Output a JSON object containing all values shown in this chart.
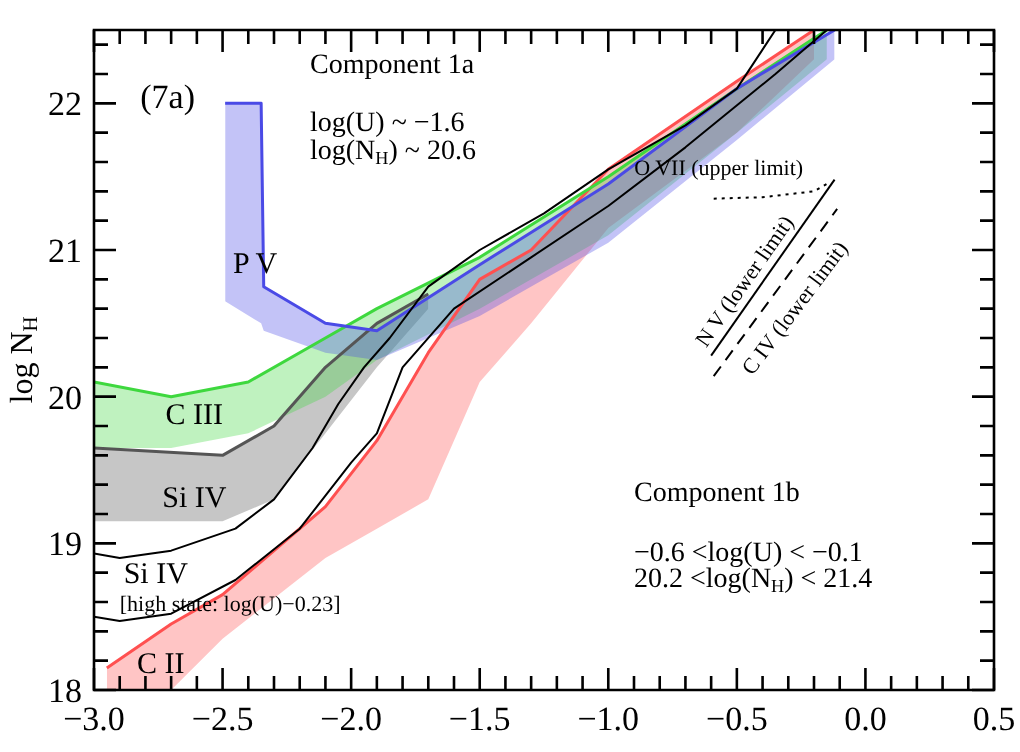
{
  "chart_data": {
    "type": "line",
    "ylabel": "log N$_{H}$",
    "xlim": [
      -3.0,
      0.5
    ],
    "ylim": [
      18,
      22.5
    ],
    "xticks": [
      {
        "value": -3,
        "label": "−3.0"
      },
      {
        "value": -2.9,
        "label": null
      },
      {
        "value": -2.8,
        "label": null
      },
      {
        "value": -2.7,
        "label": null
      },
      {
        "value": -2.6,
        "label": null
      },
      {
        "value": -2.5,
        "label": "−2.5"
      },
      {
        "value": -2.4,
        "label": null
      },
      {
        "value": -2.3,
        "label": null
      },
      {
        "value": -2.2,
        "label": null
      },
      {
        "value": -2.1,
        "label": null
      },
      {
        "value": -2,
        "label": "−2.0"
      },
      {
        "value": -1.9,
        "label": null
      },
      {
        "value": -1.8,
        "label": null
      },
      {
        "value": -1.7,
        "label": null
      },
      {
        "value": -1.6,
        "label": null
      },
      {
        "value": -1.5,
        "label": "−1.5"
      },
      {
        "value": -1.4,
        "label": null
      },
      {
        "value": -1.3,
        "label": null
      },
      {
        "value": -1.2,
        "label": null
      },
      {
        "value": -1.1,
        "label": null
      },
      {
        "value": -1,
        "label": "−1.0"
      },
      {
        "value": -0.9,
        "label": null
      },
      {
        "value": -0.8,
        "label": null
      },
      {
        "value": -0.7,
        "label": null
      },
      {
        "value": -0.6,
        "label": null
      },
      {
        "value": -0.5,
        "label": "−0.5"
      },
      {
        "value": -0.4,
        "label": null
      },
      {
        "value": -0.3,
        "label": null
      },
      {
        "value": -0.2,
        "label": null
      },
      {
        "value": -0.1,
        "label": null
      },
      {
        "value": 0,
        "label": "0.0"
      },
      {
        "value": 0.1,
        "label": null
      },
      {
        "value": 0.2,
        "label": null
      },
      {
        "value": 0.3,
        "label": null
      },
      {
        "value": 0.4,
        "label": null
      },
      {
        "value": 0.5,
        "label": "0.5"
      }
    ],
    "yticks": [
      18,
      {
        "value": 18.2,
        "label": null
      },
      {
        "value": 18.4,
        "label": null
      },
      {
        "value": 18.6,
        "label": null
      },
      {
        "value": 18.8,
        "label": null
      },
      19,
      {
        "value": 19.2,
        "label": null
      },
      {
        "value": 19.4,
        "label": null
      },
      {
        "value": 19.6,
        "label": null
      },
      {
        "value": 19.8,
        "label": null
      },
      20,
      {
        "value": 20.2,
        "label": null
      },
      {
        "value": 20.4,
        "label": null
      },
      {
        "value": 20.6,
        "label": null
      },
      {
        "value": 20.8,
        "label": null
      },
      21,
      {
        "value": 21.2,
        "label": null
      },
      {
        "value": 21.4,
        "label": null
      },
      {
        "value": 21.6,
        "label": null
      },
      {
        "value": 21.8,
        "label": null
      },
      22,
      {
        "value": 22.2,
        "label": null
      },
      {
        "value": 22.4,
        "label": null
      }
    ],
    "grid": false,
    "legend": false,
    "series": [
      {
        "name": "P V",
        "color": "#4a4ae6",
        "x": [
          -2.49,
          -2.35,
          -2.34,
          -2.1,
          -1.9,
          -1.5,
          -1.0,
          -0.5,
          -0.12
        ],
        "values": [
          22.0,
          22.0,
          20.75,
          20.5,
          20.45,
          20.9,
          21.45,
          22.1,
          22.5
        ],
        "lower": [
          20.65,
          20.5,
          20.45,
          20.3,
          20.25,
          20.55,
          21.05,
          21.75,
          22.3
        ],
        "upper": [
          22.0,
          22.0,
          20.75,
          20.5,
          20.45,
          20.9,
          21.45,
          22.1,
          22.5
        ]
      },
      {
        "name": "C III",
        "color": "#3ed83e",
        "x": [
          -3.0,
          -2.7,
          -2.4,
          -2.1,
          -1.9,
          -1.5,
          -1.0,
          -0.5,
          -0.15
        ],
        "values": [
          20.1,
          20.0,
          20.1,
          20.4,
          20.6,
          20.95,
          21.5,
          22.1,
          22.5
        ],
        "lower": [
          19.65,
          19.65,
          19.75,
          20.0,
          20.25,
          20.6,
          21.1,
          21.8,
          22.3
        ],
        "upper": [
          20.1,
          20.0,
          20.1,
          20.4,
          20.6,
          20.95,
          21.5,
          22.1,
          22.5
        ]
      },
      {
        "name": "Si IV",
        "color": "#555555",
        "x": [
          -3.0,
          -2.5,
          -2.3,
          -2.1,
          -1.9,
          -1.7
        ],
        "values": [
          19.65,
          19.6,
          19.8,
          20.2,
          20.5,
          20.7
        ],
        "lower": [
          19.15,
          19.15,
          19.3,
          19.75,
          20.2,
          20.6
        ],
        "upper": [
          19.65,
          19.6,
          19.8,
          20.2,
          20.5,
          20.7
        ]
      },
      {
        "name": "Si IV\n[high state: log(U)−0.23]",
        "color": "#000000",
        "x": [
          -3.0,
          -2.9,
          -2.7,
          -2.45,
          -2.2,
          -2.0,
          -1.9,
          -1.8,
          -1.6,
          -1.3,
          -1.0,
          -0.7,
          -0.35,
          -0.15
        ],
        "values": [
          18.5,
          18.47,
          18.52,
          18.75,
          19.1,
          19.55,
          19.75,
          20.2,
          20.6,
          20.95,
          21.3,
          21.7,
          22.2,
          22.5
        ]
      },
      {
        "name": "C II",
        "color": "#ff5050",
        "x": [
          -2.95,
          -2.7,
          -2.5,
          -2.1,
          -1.9,
          -1.7,
          -1.5,
          -1.3,
          -1.0,
          -0.5,
          -0.2
        ],
        "values": [
          18.15,
          18.45,
          18.65,
          19.25,
          19.7,
          20.3,
          20.8,
          21.0,
          21.55,
          22.15,
          22.5
        ],
        "lower": [
          18.0,
          18.0,
          18.35,
          18.9,
          19.1,
          19.3,
          20.1,
          20.5,
          21.15,
          21.8,
          22.3
        ],
        "upper": [
          18.15,
          18.45,
          18.65,
          19.25,
          19.7,
          20.3,
          20.8,
          21.0,
          21.55,
          22.15,
          22.5
        ]
      },
      {
        "color": "#000000",
        "x": [
          -3.0,
          -2.9,
          -2.7,
          -2.45,
          -2.3,
          -2.15,
          -2.05,
          -1.95,
          -1.85,
          -1.7,
          -1.5,
          -1.25,
          -1.0,
          -0.7,
          -0.5,
          -0.35
        ],
        "values": [
          18.93,
          18.9,
          18.95,
          19.1,
          19.3,
          19.65,
          19.95,
          20.2,
          20.4,
          20.75,
          21.0,
          21.25,
          21.55,
          21.85,
          22.1,
          22.5
        ]
      },
      {
        "name": "O VII (upper limit)",
        "color": "#000000",
        "line_style": "dotted",
        "x": [
          -0.59,
          -0.4,
          -0.2,
          -0.15
        ],
        "values": [
          21.35,
          21.36,
          21.4,
          21.45
        ]
      },
      {
        "name": "N V (lower limit)",
        "color": "#000000",
        "x": [
          -0.6,
          -0.12
        ],
        "values": [
          20.28,
          21.48
        ]
      },
      {
        "name": "C IV (lower limit)",
        "color": "#000000",
        "line_style": "dashed",
        "x": [
          -0.59,
          -0.11
        ],
        "values": [
          20.14,
          21.28
        ]
      }
    ],
    "annotations": [
      "(7a)",
      "Component 1a",
      "log(U) ~ −1.6",
      "log(N$_{H}$) ~ 20.6",
      "Component 1b",
      "−0.6 <log(U) < −0.1",
      "20.2 <log(N$_{H}$) < 21.4"
    ]
  }
}
